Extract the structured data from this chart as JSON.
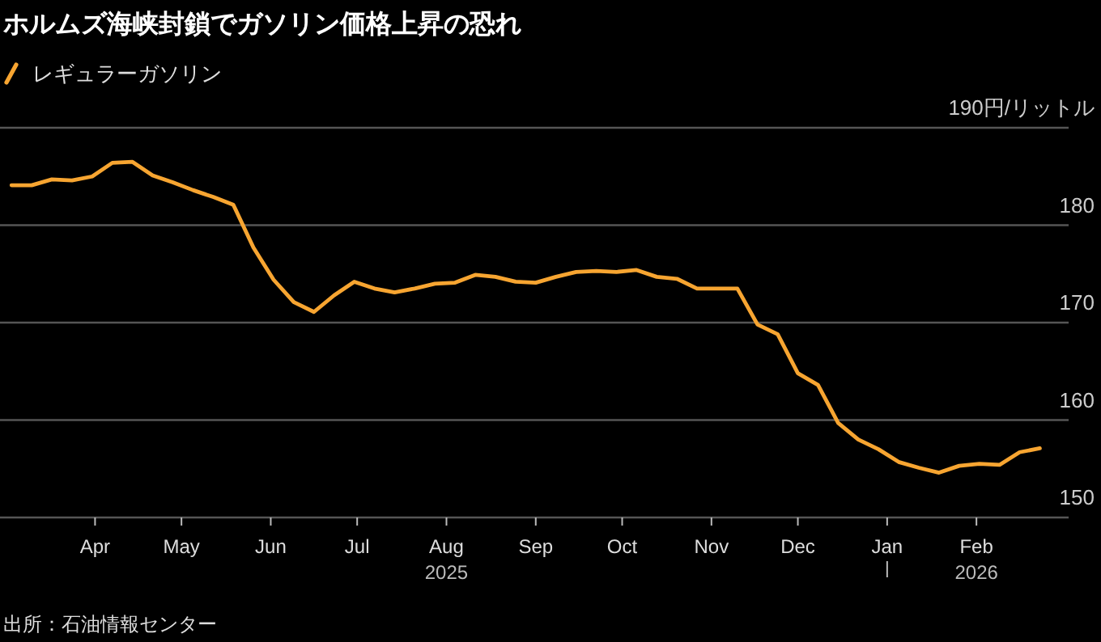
{
  "chart_data": {
    "type": "line",
    "title": "ホルムズ海峡封鎖でガソリン価格上昇の恐れ",
    "legend": "top left",
    "grid": "y",
    "tick_labels": "xy",
    "x": [
      "2025-03-03",
      "2025-03-10",
      "2025-03-17",
      "2025-03-24",
      "2025-03-31",
      "2025-04-07",
      "2025-04-14",
      "2025-04-21",
      "2025-04-28",
      "2025-05-05",
      "2025-05-12",
      "2025-05-19",
      "2025-05-26",
      "2025-06-02",
      "2025-06-09",
      "2025-06-16",
      "2025-06-23",
      "2025-06-30",
      "2025-07-07",
      "2025-07-14",
      "2025-07-21",
      "2025-07-28",
      "2025-08-04",
      "2025-08-11",
      "2025-08-18",
      "2025-08-25",
      "2025-09-01",
      "2025-09-08",
      "2025-09-15",
      "2025-09-22",
      "2025-09-29",
      "2025-10-06",
      "2025-10-13",
      "2025-10-20",
      "2025-10-27",
      "2025-11-03",
      "2025-11-10",
      "2025-11-17",
      "2025-11-24",
      "2025-12-01",
      "2025-12-08",
      "2025-12-15",
      "2025-12-22",
      "2025-12-29",
      "2026-01-05",
      "2026-01-12",
      "2026-01-19",
      "2026-01-26",
      "2026-02-02",
      "2026-02-09",
      "2026-02-16",
      "2026-02-23"
    ],
    "series": [
      {
        "name": "レギュラーガソリン",
        "color": "#f7a531",
        "values": [
          184.1,
          184.1,
          184.7,
          184.6,
          185.0,
          186.4,
          186.5,
          185.1,
          184.4,
          183.6,
          182.9,
          182.1,
          177.7,
          174.4,
          172.1,
          171.1,
          172.8,
          174.2,
          173.5,
          173.1,
          173.5,
          174.0,
          174.1,
          174.9,
          174.7,
          174.2,
          174.1,
          174.7,
          175.2,
          175.3,
          175.2,
          175.4,
          174.7,
          174.5,
          173.5,
          173.5,
          173.5,
          169.8,
          168.8,
          164.8,
          163.6,
          159.7,
          158.0,
          157.0,
          155.7,
          155.1,
          154.6,
          155.3,
          155.5,
          155.4,
          156.7,
          157.1
        ]
      }
    ],
    "xlim": [
      "2025-02-27",
      "2026-03-05"
    ],
    "xticks": [
      {
        "value": "2025-04-01",
        "label": "Apr"
      },
      {
        "value": "2025-05-01",
        "label": "May"
      },
      {
        "value": "2025-06-01",
        "label": "Jun"
      },
      {
        "value": "2025-07-01",
        "label": "Jul"
      },
      {
        "value": "2025-08-01",
        "label": "Aug\n2025"
      },
      {
        "value": "2025-09-01",
        "label": "Sep"
      },
      {
        "value": "2025-10-01",
        "label": "Oct"
      },
      {
        "value": "2025-11-01",
        "label": "Nov"
      },
      {
        "value": "2025-12-01",
        "label": "Dec"
      },
      {
        "value": "2026-01-01",
        "label": "Jan"
      },
      {
        "value": "2026-02-01",
        "label": "Feb\n2026"
      }
    ],
    "ylim": [
      150,
      190
    ],
    "yticks": [
      150,
      160,
      170,
      180,
      {
        "value": 190,
        "label": "190円/リットル"
      }
    ],
    "annotations": [
      "出所：石油情報センター"
    ]
  }
}
